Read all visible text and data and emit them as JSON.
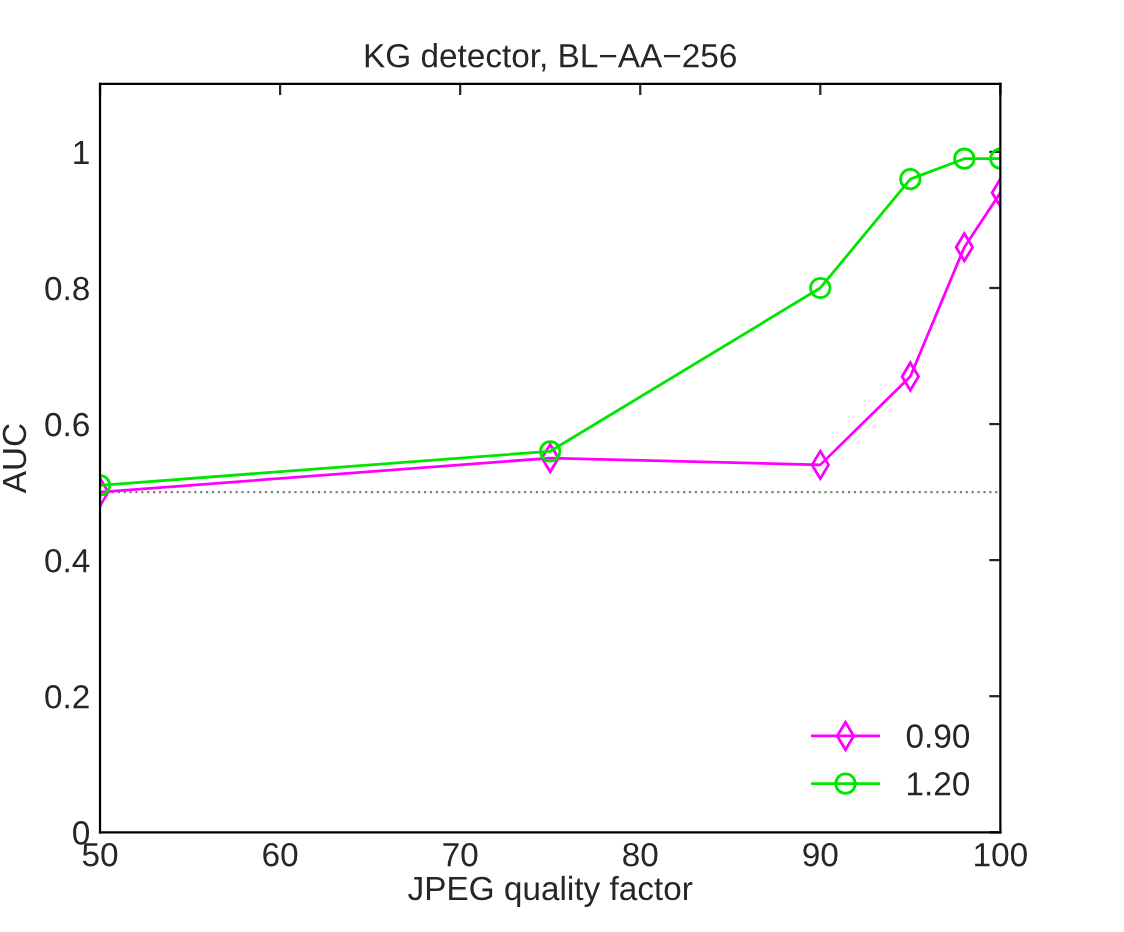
{
  "chart_data": {
    "type": "line",
    "title": "KG detector, BL−AA−256",
    "xlabel": "JPEG quality factor",
    "ylabel": "AUC",
    "x": [
      50,
      75,
      90,
      95,
      98,
      100
    ],
    "series": [
      {
        "name": "0.90",
        "color": "#ff00ff",
        "marker": "diamond",
        "values": [
          0.5,
          0.55,
          0.54,
          0.67,
          0.86,
          0.94
        ]
      },
      {
        "name": "1.20",
        "color": "#00e600",
        "marker": "circle",
        "values": [
          0.51,
          0.56,
          0.8,
          0.96,
          0.99,
          0.99
        ]
      }
    ],
    "xlim": [
      50,
      100
    ],
    "xticks": [
      50,
      60,
      70,
      80,
      90,
      100
    ],
    "ylim": [
      0,
      1.1
    ],
    "yticks": [
      0,
      0.2,
      0.4,
      0.6,
      0.8,
      1
    ],
    "ref_lines": [
      {
        "axis": "y",
        "value": 0.5,
        "color": "#808080",
        "line_style": "dotted"
      }
    ],
    "legend": "bottom right",
    "grid": false,
    "line_style": "solid"
  }
}
